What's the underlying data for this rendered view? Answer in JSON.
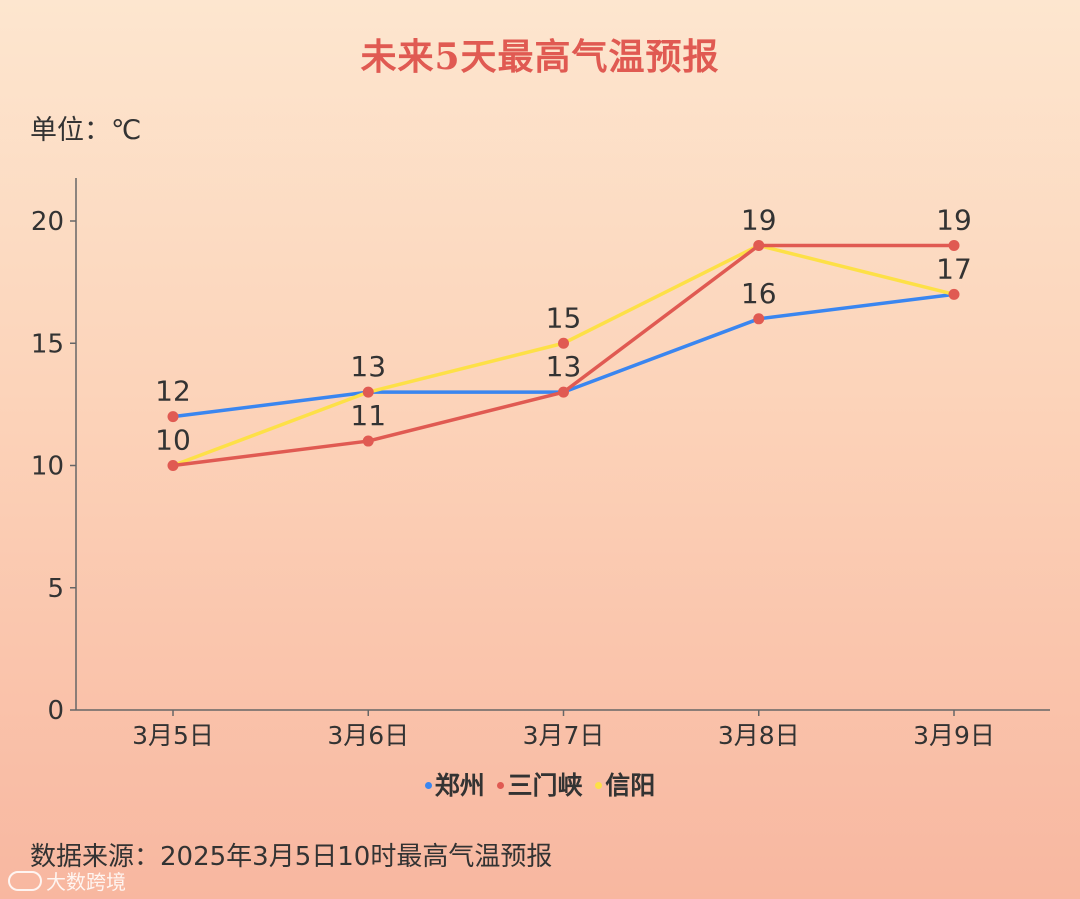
{
  "title": "未来5天最高气温预报",
  "unit_label": "单位：℃",
  "source": "数据来源：2025年3月5日10时最高气温预报",
  "watermark": "大数跨境",
  "colors": {
    "zhengzhou": "#3a86f0",
    "sanmenxia": "#e05a52",
    "xinyang": "#fde047",
    "title": "#e05a52"
  },
  "chart_data": {
    "type": "line",
    "title": "未来5天最高气温预报",
    "xlabel": "",
    "ylabel": "单位：℃",
    "categories": [
      "3月5日",
      "3月6日",
      "3月7日",
      "3月8日",
      "3月9日"
    ],
    "ylim": [
      0,
      22
    ],
    "yticks": [
      0,
      5,
      10,
      15,
      20
    ],
    "grid": false,
    "legend_position": "bottom",
    "series": [
      {
        "name": "郑州",
        "color": "#3a86f0",
        "values": [
          12,
          13,
          13,
          16,
          17
        ],
        "labels_shown": [
          true,
          false,
          false,
          true,
          true
        ]
      },
      {
        "name": "三门峡",
        "color": "#e05a52",
        "values": [
          10,
          11,
          13,
          19,
          19
        ],
        "labels_shown": [
          true,
          true,
          true,
          true,
          true
        ]
      },
      {
        "name": "信阳",
        "color": "#fde047",
        "values": [
          10,
          13,
          15,
          19,
          17
        ],
        "labels_shown": [
          false,
          true,
          true,
          false,
          false
        ]
      }
    ]
  }
}
